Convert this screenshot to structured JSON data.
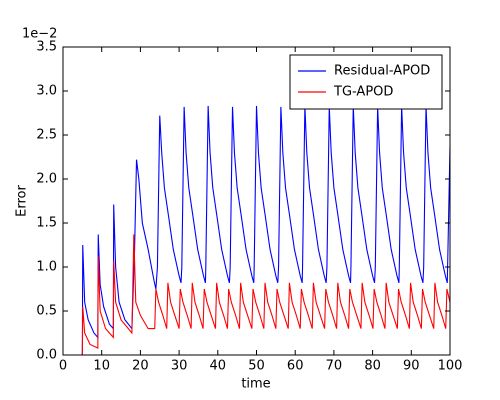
{
  "chart_data": {
    "type": "line",
    "xlabel": "time",
    "ylabel": "Error",
    "y_offset_text": "1e−2",
    "xlim": [
      0,
      100
    ],
    "xticks": [
      0,
      10,
      20,
      30,
      40,
      50,
      60,
      70,
      80,
      90,
      100
    ],
    "ylim": [
      0,
      3.5
    ],
    "yticks": [
      {
        "value": 0,
        "label": "0.0"
      },
      0.5,
      {
        "value": 1,
        "label": "1.0"
      },
      1.5,
      {
        "value": 2,
        "label": "2.0"
      },
      2.5,
      {
        "value": 3,
        "label": "3.0"
      },
      3.5
    ],
    "legend": "upper right",
    "series": [
      {
        "name": "Residual-APOD",
        "color": "#0000ff",
        "x": [
          0,
          5,
          5.1,
          5.6,
          6.5,
          8,
          9,
          9.1,
          9.6,
          10.5,
          12,
          13,
          13.1,
          13.6,
          14.5,
          16,
          17.8,
          18.5,
          19,
          19.6,
          20.5,
          22,
          23.5,
          24,
          24.4,
          25,
          25.5,
          26.2,
          27.2,
          28.5,
          30,
          30.5,
          30.7,
          31.3,
          31.8,
          32.5,
          33.5,
          34.8,
          36.3,
          36.8,
          36.9,
          37.5,
          38,
          38.7,
          39.7,
          41,
          42.5,
          43,
          43.2,
          43.8,
          44.3,
          45,
          46,
          47.3,
          48.8,
          49.3,
          49.4,
          50,
          50.5,
          51.2,
          52.2,
          53.5,
          55,
          55.5,
          55.7,
          56.3,
          56.8,
          57.5,
          58.5,
          59.8,
          61.3,
          61.8,
          61.9,
          62.5,
          63,
          63.7,
          64.7,
          66,
          67.5,
          68,
          68.2,
          68.8,
          69.3,
          70,
          71,
          72.3,
          73.8,
          74.3,
          74.4,
          75,
          75.5,
          76.2,
          77.2,
          78.5,
          80,
          80.5,
          80.7,
          81.3,
          81.8,
          82.5,
          83.5,
          84.8,
          86.3,
          86.8,
          86.9,
          87.5,
          88,
          88.7,
          89.7,
          91,
          92.5,
          93,
          93.2,
          93.8,
          94.3,
          95,
          96,
          97.3,
          98.8,
          99.3,
          100
        ],
        "values": [
          0,
          0,
          1.25,
          0.6,
          0.4,
          0.25,
          0.2,
          1.37,
          0.8,
          0.55,
          0.35,
          0.3,
          1.71,
          1.0,
          0.6,
          0.4,
          0.3,
          1.2,
          2.22,
          2.0,
          1.5,
          1.2,
          0.85,
          0.75,
          1.0,
          2.72,
          2.3,
          1.9,
          1.6,
          1.2,
          0.9,
          0.82,
          1.0,
          2.82,
          2.3,
          1.9,
          1.6,
          1.2,
          0.9,
          0.82,
          1.0,
          2.83,
          2.3,
          1.9,
          1.6,
          1.2,
          0.9,
          0.82,
          1.0,
          2.82,
          2.3,
          1.9,
          1.6,
          1.2,
          0.9,
          0.82,
          1.0,
          2.83,
          2.3,
          1.9,
          1.6,
          1.2,
          0.9,
          0.82,
          1.0,
          2.82,
          2.3,
          1.9,
          1.6,
          1.2,
          0.9,
          0.82,
          1.0,
          2.83,
          2.3,
          1.9,
          1.6,
          1.2,
          0.9,
          0.82,
          1.0,
          2.82,
          2.3,
          1.9,
          1.6,
          1.2,
          0.9,
          0.82,
          1.0,
          2.83,
          2.3,
          1.9,
          1.6,
          1.2,
          0.9,
          0.82,
          1.0,
          2.82,
          2.3,
          1.9,
          1.6,
          1.2,
          0.9,
          0.82,
          1.0,
          2.83,
          2.3,
          1.9,
          1.6,
          1.2,
          0.9,
          0.82,
          1.0,
          2.83,
          2.3,
          1.9,
          1.6,
          1.2,
          0.9,
          0.82,
          2.37
        ]
      },
      {
        "name": "TG-APOD",
        "color": "#ff0000",
        "x": [
          0,
          5,
          5.1,
          5.6,
          7,
          9,
          9.1,
          9.6,
          11,
          13,
          13.1,
          13.6,
          15,
          17.8,
          18.3,
          18.8,
          20,
          22,
          23.7,
          24,
          24.7,
          25.8,
          26.8,
          27.1,
          27.8,
          28.9,
          30,
          30.3,
          31,
          32.1,
          33.1,
          33.4,
          34.1,
          35.2,
          36.2,
          36.5,
          37.2,
          38.3,
          39.4,
          39.7,
          40.4,
          41.5,
          42.5,
          42.8,
          43.5,
          44.6,
          45.6,
          45.9,
          46.6,
          47.7,
          48.8,
          49.1,
          49.8,
          50.9,
          51.9,
          52.2,
          52.9,
          54,
          55,
          55.3,
          56,
          57.1,
          58.2,
          58.5,
          59.2,
          60.3,
          61.3,
          61.6,
          62.3,
          63.4,
          64.4,
          64.7,
          65.4,
          66.5,
          67.6,
          67.9,
          68.6,
          69.7,
          70.7,
          71,
          71.7,
          72.8,
          73.8,
          74.1,
          74.8,
          75.9,
          77,
          77.3,
          78,
          79.1,
          80.1,
          80.4,
          81.1,
          82.2,
          83.2,
          83.5,
          84.2,
          85.3,
          86.4,
          86.7,
          87.4,
          88.5,
          89.5,
          89.8,
          90.5,
          91.6,
          92.6,
          92.9,
          93.6,
          94.7,
          95.8,
          96.1,
          96.8,
          97.9,
          98.9,
          99.2,
          100
        ],
        "values": [
          0,
          0,
          0.55,
          0.25,
          0.12,
          0.08,
          1.12,
          0.5,
          0.3,
          0.2,
          1.07,
          0.6,
          0.4,
          0.25,
          1.37,
          0.6,
          0.45,
          0.3,
          0.3,
          0.75,
          0.6,
          0.45,
          0.3,
          0.82,
          0.6,
          0.45,
          0.3,
          0.75,
          0.6,
          0.45,
          0.3,
          0.82,
          0.6,
          0.45,
          0.3,
          0.75,
          0.6,
          0.45,
          0.3,
          0.82,
          0.6,
          0.45,
          0.3,
          0.75,
          0.6,
          0.45,
          0.3,
          0.82,
          0.6,
          0.45,
          0.3,
          0.75,
          0.6,
          0.45,
          0.3,
          0.82,
          0.6,
          0.45,
          0.3,
          0.75,
          0.6,
          0.45,
          0.3,
          0.82,
          0.6,
          0.45,
          0.3,
          0.75,
          0.6,
          0.45,
          0.3,
          0.82,
          0.6,
          0.45,
          0.3,
          0.75,
          0.6,
          0.45,
          0.3,
          0.82,
          0.6,
          0.45,
          0.3,
          0.75,
          0.6,
          0.45,
          0.3,
          0.82,
          0.6,
          0.45,
          0.3,
          0.75,
          0.6,
          0.45,
          0.3,
          0.82,
          0.6,
          0.45,
          0.3,
          0.75,
          0.6,
          0.45,
          0.3,
          0.82,
          0.6,
          0.45,
          0.3,
          0.75,
          0.6,
          0.45,
          0.3,
          0.82,
          0.6,
          0.45,
          0.3,
          0.75,
          0.6
        ]
      }
    ]
  }
}
